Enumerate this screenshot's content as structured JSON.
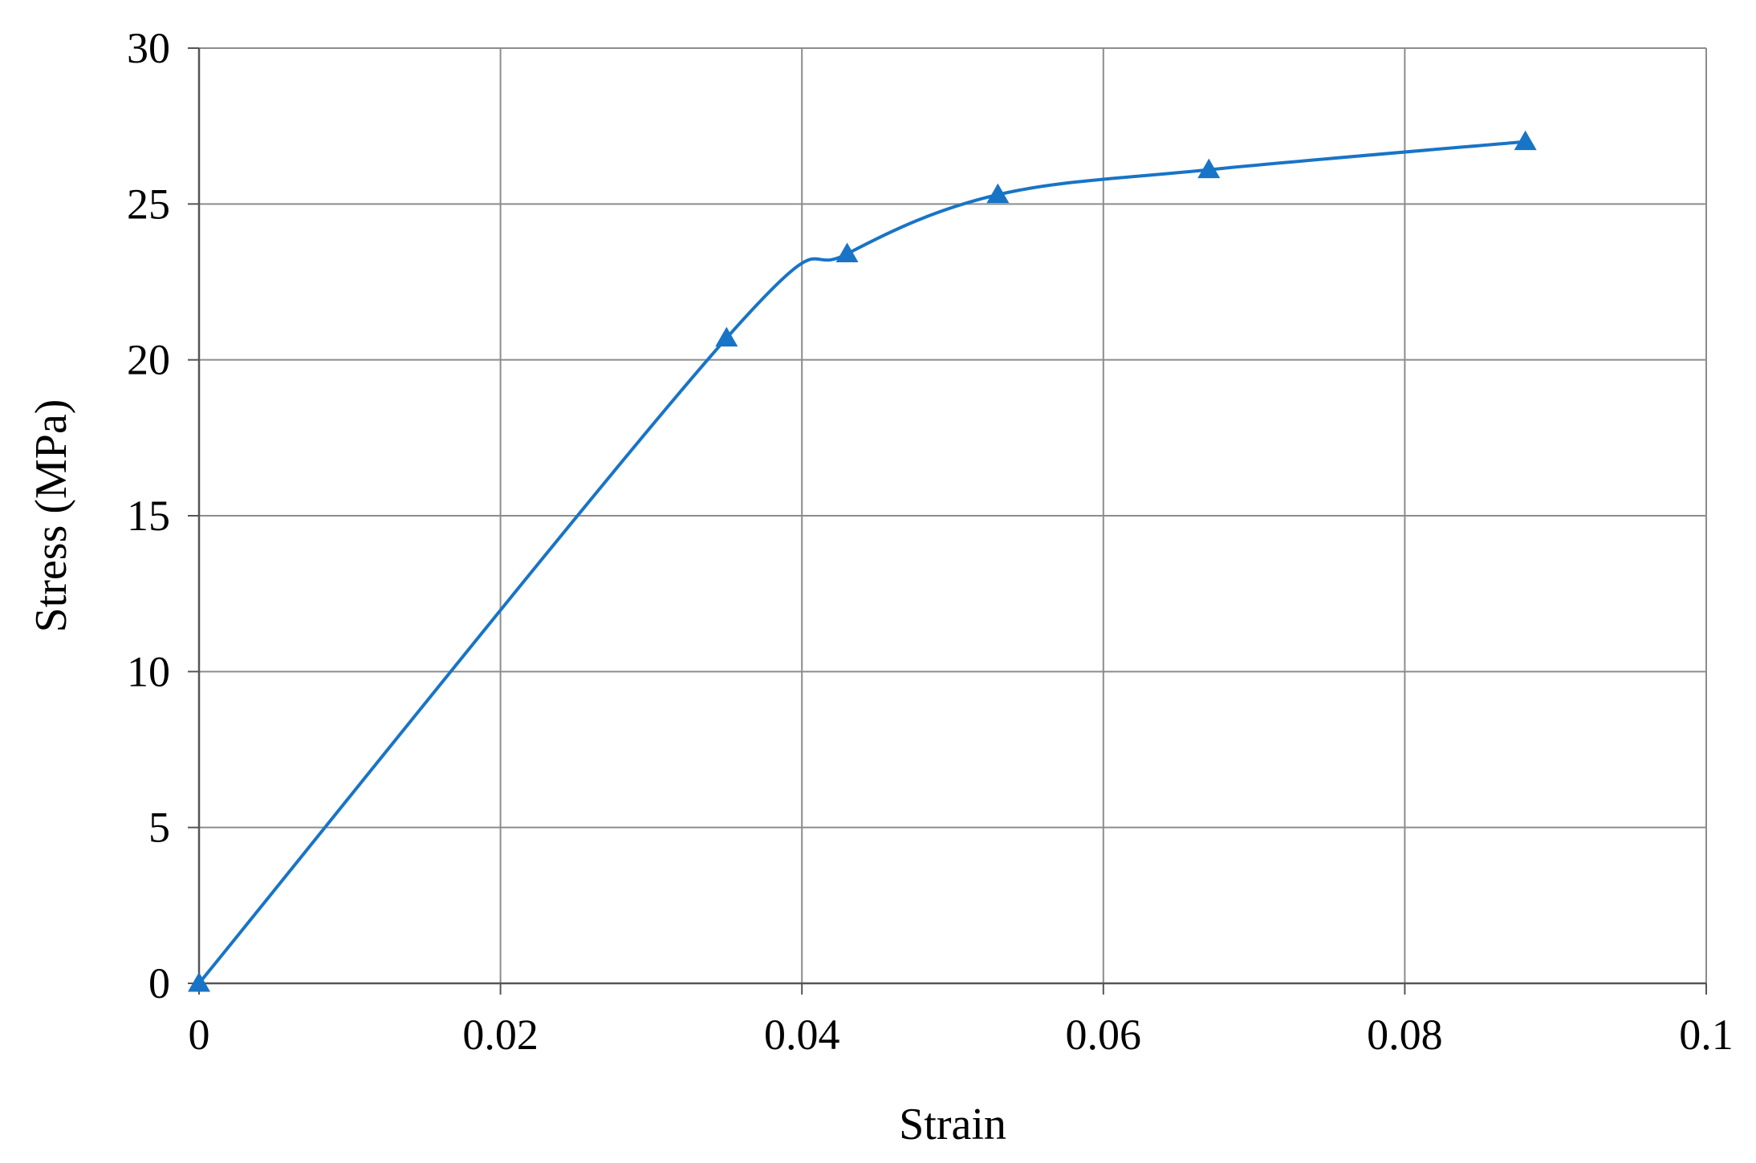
{
  "chart_data": {
    "type": "line",
    "title": "",
    "xlabel": "Strain",
    "ylabel": "Stress (MPa)",
    "xlim": [
      0,
      0.1
    ],
    "ylim": [
      0,
      30
    ],
    "x_ticks": [
      "0",
      "0.02",
      "0.04",
      "0.06",
      "0.08",
      "0.1"
    ],
    "y_ticks": [
      "0",
      "5",
      "10",
      "15",
      "20",
      "25",
      "30"
    ],
    "grid": true,
    "legend": "none",
    "series": [
      {
        "marker": "triangle",
        "color": "#1874C6",
        "smooth": true,
        "points": [
          {
            "x": 0,
            "y": 0
          },
          {
            "x": 0.035,
            "y": 20.7
          },
          {
            "x": 0.043,
            "y": 23.4
          },
          {
            "x": 0.053,
            "y": 25.3
          },
          {
            "x": 0.067,
            "y": 26.1
          },
          {
            "x": 0.088,
            "y": 27.0
          }
        ]
      }
    ]
  }
}
